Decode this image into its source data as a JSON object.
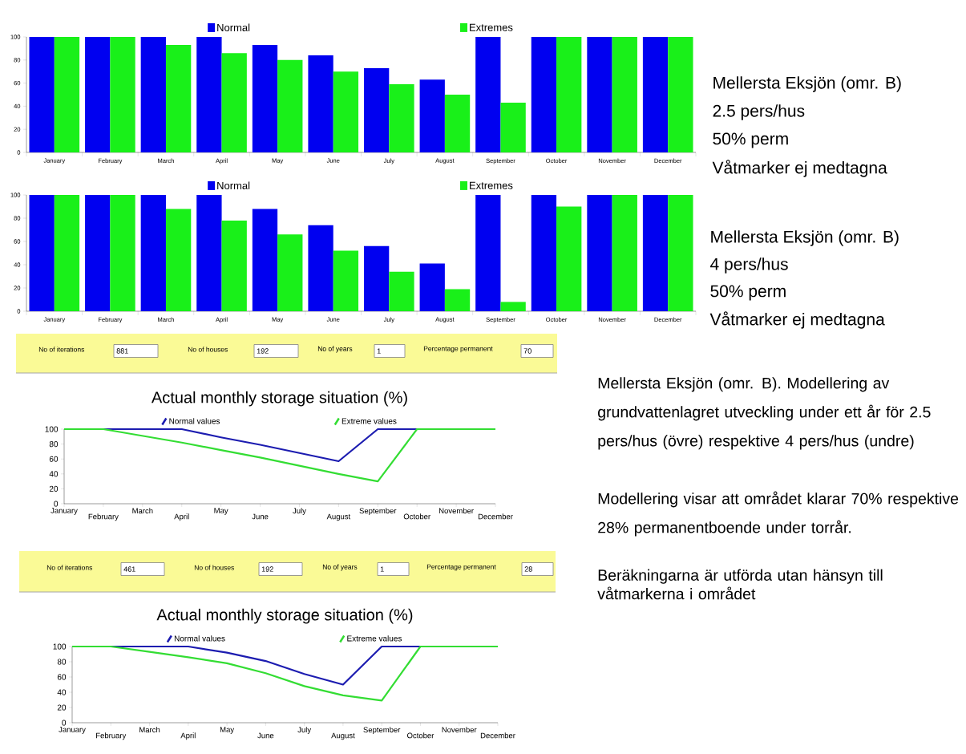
{
  "chart_data": [
    {
      "type": "bar",
      "categories": [
        "January",
        "February",
        "March",
        "April",
        "May",
        "June",
        "July",
        "August",
        "September",
        "October",
        "November",
        "December"
      ],
      "series": [
        {
          "name": "Normal",
          "color": "#0000f0",
          "values": [
            100,
            100,
            100,
            100,
            93,
            84,
            73,
            63,
            100,
            100,
            100,
            100
          ]
        },
        {
          "name": "Extremes",
          "color": "#19f019",
          "values": [
            100,
            100,
            93,
            86,
            80,
            70,
            59,
            50,
            43,
            100,
            100,
            100
          ]
        }
      ],
      "ylim": [
        0,
        100
      ],
      "yticks": [
        0,
        20,
        40,
        60,
        80,
        100
      ],
      "legend": "top",
      "annotations": [
        "Mellersta Eksjön (omr. B)",
        "2.5 pers/hus",
        "50% perm",
        "Våtmarker ej medtagna"
      ]
    },
    {
      "type": "bar",
      "categories": [
        "January",
        "February",
        "March",
        "April",
        "May",
        "June",
        "July",
        "August",
        "September",
        "October",
        "November",
        "December"
      ],
      "series": [
        {
          "name": "Normal",
          "color": "#0000f0",
          "values": [
            100,
            100,
            100,
            100,
            88,
            74,
            56,
            41,
            100,
            100,
            100,
            100
          ]
        },
        {
          "name": "Extremes",
          "color": "#19f019",
          "values": [
            100,
            100,
            88,
            78,
            66,
            52,
            34,
            19,
            8,
            90,
            100,
            100
          ]
        }
      ],
      "ylim": [
        0,
        100
      ],
      "yticks": [
        0,
        20,
        40,
        60,
        80,
        100
      ],
      "legend": "top",
      "annotations": [
        "Mellersta Eksjön (omr. B)",
        "4 pers/hus",
        "50% perm",
        "Våtmarker ej medtagna"
      ]
    },
    {
      "type": "other",
      "annotations": [
        "No of iterations",
        "881",
        "No of houses",
        "192",
        "No of years",
        "1",
        "Percentage permanent",
        "70"
      ]
    },
    {
      "type": "line",
      "title": "Actual monthly storage situation (%)",
      "categories": [
        "January",
        "February",
        "March",
        "April",
        "May",
        "June",
        "July",
        "August",
        "September",
        "October",
        "November",
        "December"
      ],
      "series": [
        {
          "name": "Normal values",
          "color": "#1c1cb0",
          "values": [
            100,
            100,
            100,
            100,
            89,
            79,
            68,
            57,
            100,
            100,
            null,
            null
          ]
        },
        {
          "name": "Extreme values",
          "color": "#33dd33",
          "values": [
            100,
            100,
            91,
            82,
            72,
            62,
            51,
            40,
            30,
            100,
            100,
            100
          ]
        }
      ],
      "ylim": [
        0,
        100
      ],
      "yticks": [
        0,
        20,
        40,
        60,
        80,
        100
      ],
      "legend": "top"
    },
    {
      "type": "other",
      "annotations": [
        "No of iterations",
        "461",
        "No of houses",
        "192",
        "No of years",
        "1",
        "Percentage permanent",
        "28"
      ]
    },
    {
      "type": "line",
      "title": "Actual monthly storage situation (%)",
      "categories": [
        "January",
        "February",
        "March",
        "April",
        "May",
        "June",
        "July",
        "August",
        "September",
        "October",
        "November",
        "December"
      ],
      "series": [
        {
          "name": "Normal values",
          "color": "#1c1cb0",
          "values": [
            100,
            100,
            100,
            100,
            92,
            81,
            64,
            50,
            100,
            100,
            null,
            null
          ]
        },
        {
          "name": "Extreme values",
          "color": "#33dd33",
          "values": [
            100,
            100,
            93,
            86,
            78,
            65,
            48,
            36,
            29,
            100,
            100,
            100
          ]
        }
      ],
      "ylim": [
        0,
        100
      ],
      "yticks": [
        0,
        20,
        40,
        60,
        80,
        100
      ],
      "legend": "top"
    },
    {
      "type": "other",
      "annotations": [
        "Mellersta Eksjön (omr. B). Modellering av grundvattenlagret utveckling under ett år för 2.5 pers/hus (övre) respektive 4 pers/hus (undre)",
        "Modellering visar att området klarar 70% respektive 28% permanentboende under torrår.",
        "Beräkningarna är utförda utan hänsyn till våtmarkerna i området"
      ]
    }
  ]
}
